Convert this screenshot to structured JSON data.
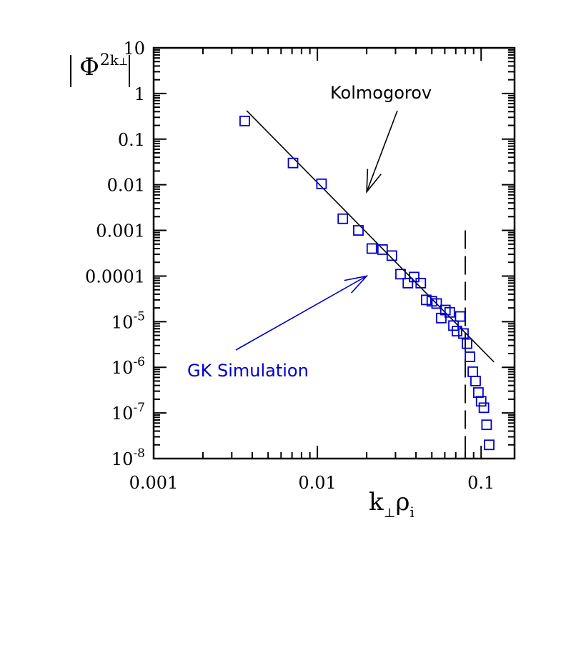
{
  "chart_data": {
    "type": "scatter",
    "x_scale": "log",
    "y_scale": "log",
    "xlim": [
      0.001,
      0.16
    ],
    "ylim": [
      1e-08,
      10
    ],
    "x_ticks": [
      {
        "value": 0.001,
        "label": "0.001"
      },
      {
        "value": 0.01,
        "label": "0.01"
      },
      {
        "value": 0.1,
        "label": "0.1"
      }
    ],
    "y_ticks": [
      {
        "value": 10,
        "label": "10"
      },
      {
        "value": 1,
        "label": "1"
      },
      {
        "value": 0.1,
        "label": "0.1"
      },
      {
        "value": 0.01,
        "label": "0.01"
      },
      {
        "value": 0.001,
        "label": "0.001"
      },
      {
        "value": 0.0001,
        "label": "0.0001"
      },
      {
        "value": 1e-05,
        "label": "10",
        "exp": "-5"
      },
      {
        "value": 1e-06,
        "label": "10",
        "exp": "-6"
      },
      {
        "value": 1e-07,
        "label": "10",
        "exp": "-7"
      },
      {
        "value": 1e-08,
        "label": "10",
        "exp": "-8"
      }
    ],
    "xlabel": {
      "k": "k",
      "sub": "⊥",
      "rho": "ρ",
      "rho_sub": "i"
    },
    "ylabel": {
      "phi": "Φ",
      "sup": "2",
      "sub": "k",
      "subsub": "⊥"
    },
    "series": [
      {
        "name": "GK Simulation",
        "type": "scatter",
        "marker": "open-square",
        "color": "#0000cc",
        "points": [
          [
            0.0036,
            0.25
          ],
          [
            0.0071,
            0.03
          ],
          [
            0.0106,
            0.0105
          ],
          [
            0.0143,
            0.0018
          ],
          [
            0.0178,
            0.001
          ],
          [
            0.0215,
            0.0004
          ],
          [
            0.025,
            0.00038
          ],
          [
            0.0285,
            0.00028
          ],
          [
            0.0322,
            0.00011
          ],
          [
            0.0357,
            7e-05
          ],
          [
            0.039,
            9.5e-05
          ],
          [
            0.0428,
            7e-05
          ],
          [
            0.0462,
            3e-05
          ],
          [
            0.05,
            2.8e-05
          ],
          [
            0.0535,
            2.5e-05
          ],
          [
            0.0571,
            1.2e-05
          ],
          [
            0.0605,
            1.8e-05
          ],
          [
            0.0643,
            1.6e-05
          ],
          [
            0.0678,
            8.2e-06
          ],
          [
            0.0712,
            6.2e-06
          ],
          [
            0.0745,
            1.3e-05
          ],
          [
            0.078,
            5.5e-06
          ],
          [
            0.082,
            3.3e-06
          ],
          [
            0.0855,
            1.7e-06
          ],
          [
            0.089,
            8e-07
          ],
          [
            0.0925,
            5e-07
          ],
          [
            0.0962,
            2.8e-07
          ],
          [
            0.1,
            1.8e-07
          ],
          [
            0.104,
            1.3e-07
          ],
          [
            0.108,
            5.5e-08
          ],
          [
            0.112,
            2e-08
          ]
        ]
      },
      {
        "name": "Kolmogorov",
        "type": "line",
        "color": "#000000",
        "points": [
          [
            0.0037,
            0.42
          ],
          [
            0.12,
            1.3e-06
          ]
        ]
      }
    ],
    "cutoff_line": {
      "x": 0.08,
      "y_top": 0.001,
      "y_bottom": 1e-08,
      "style": "dashed",
      "color": "#000000"
    },
    "annotations": [
      {
        "text": "Kolmogorov",
        "color": "#000000",
        "arrow_to": [
          0.02,
          0.007
        ]
      },
      {
        "text": "GK Simulation",
        "color": "#0000cc",
        "arrow_to": [
          0.02,
          0.0001
        ]
      }
    ]
  }
}
